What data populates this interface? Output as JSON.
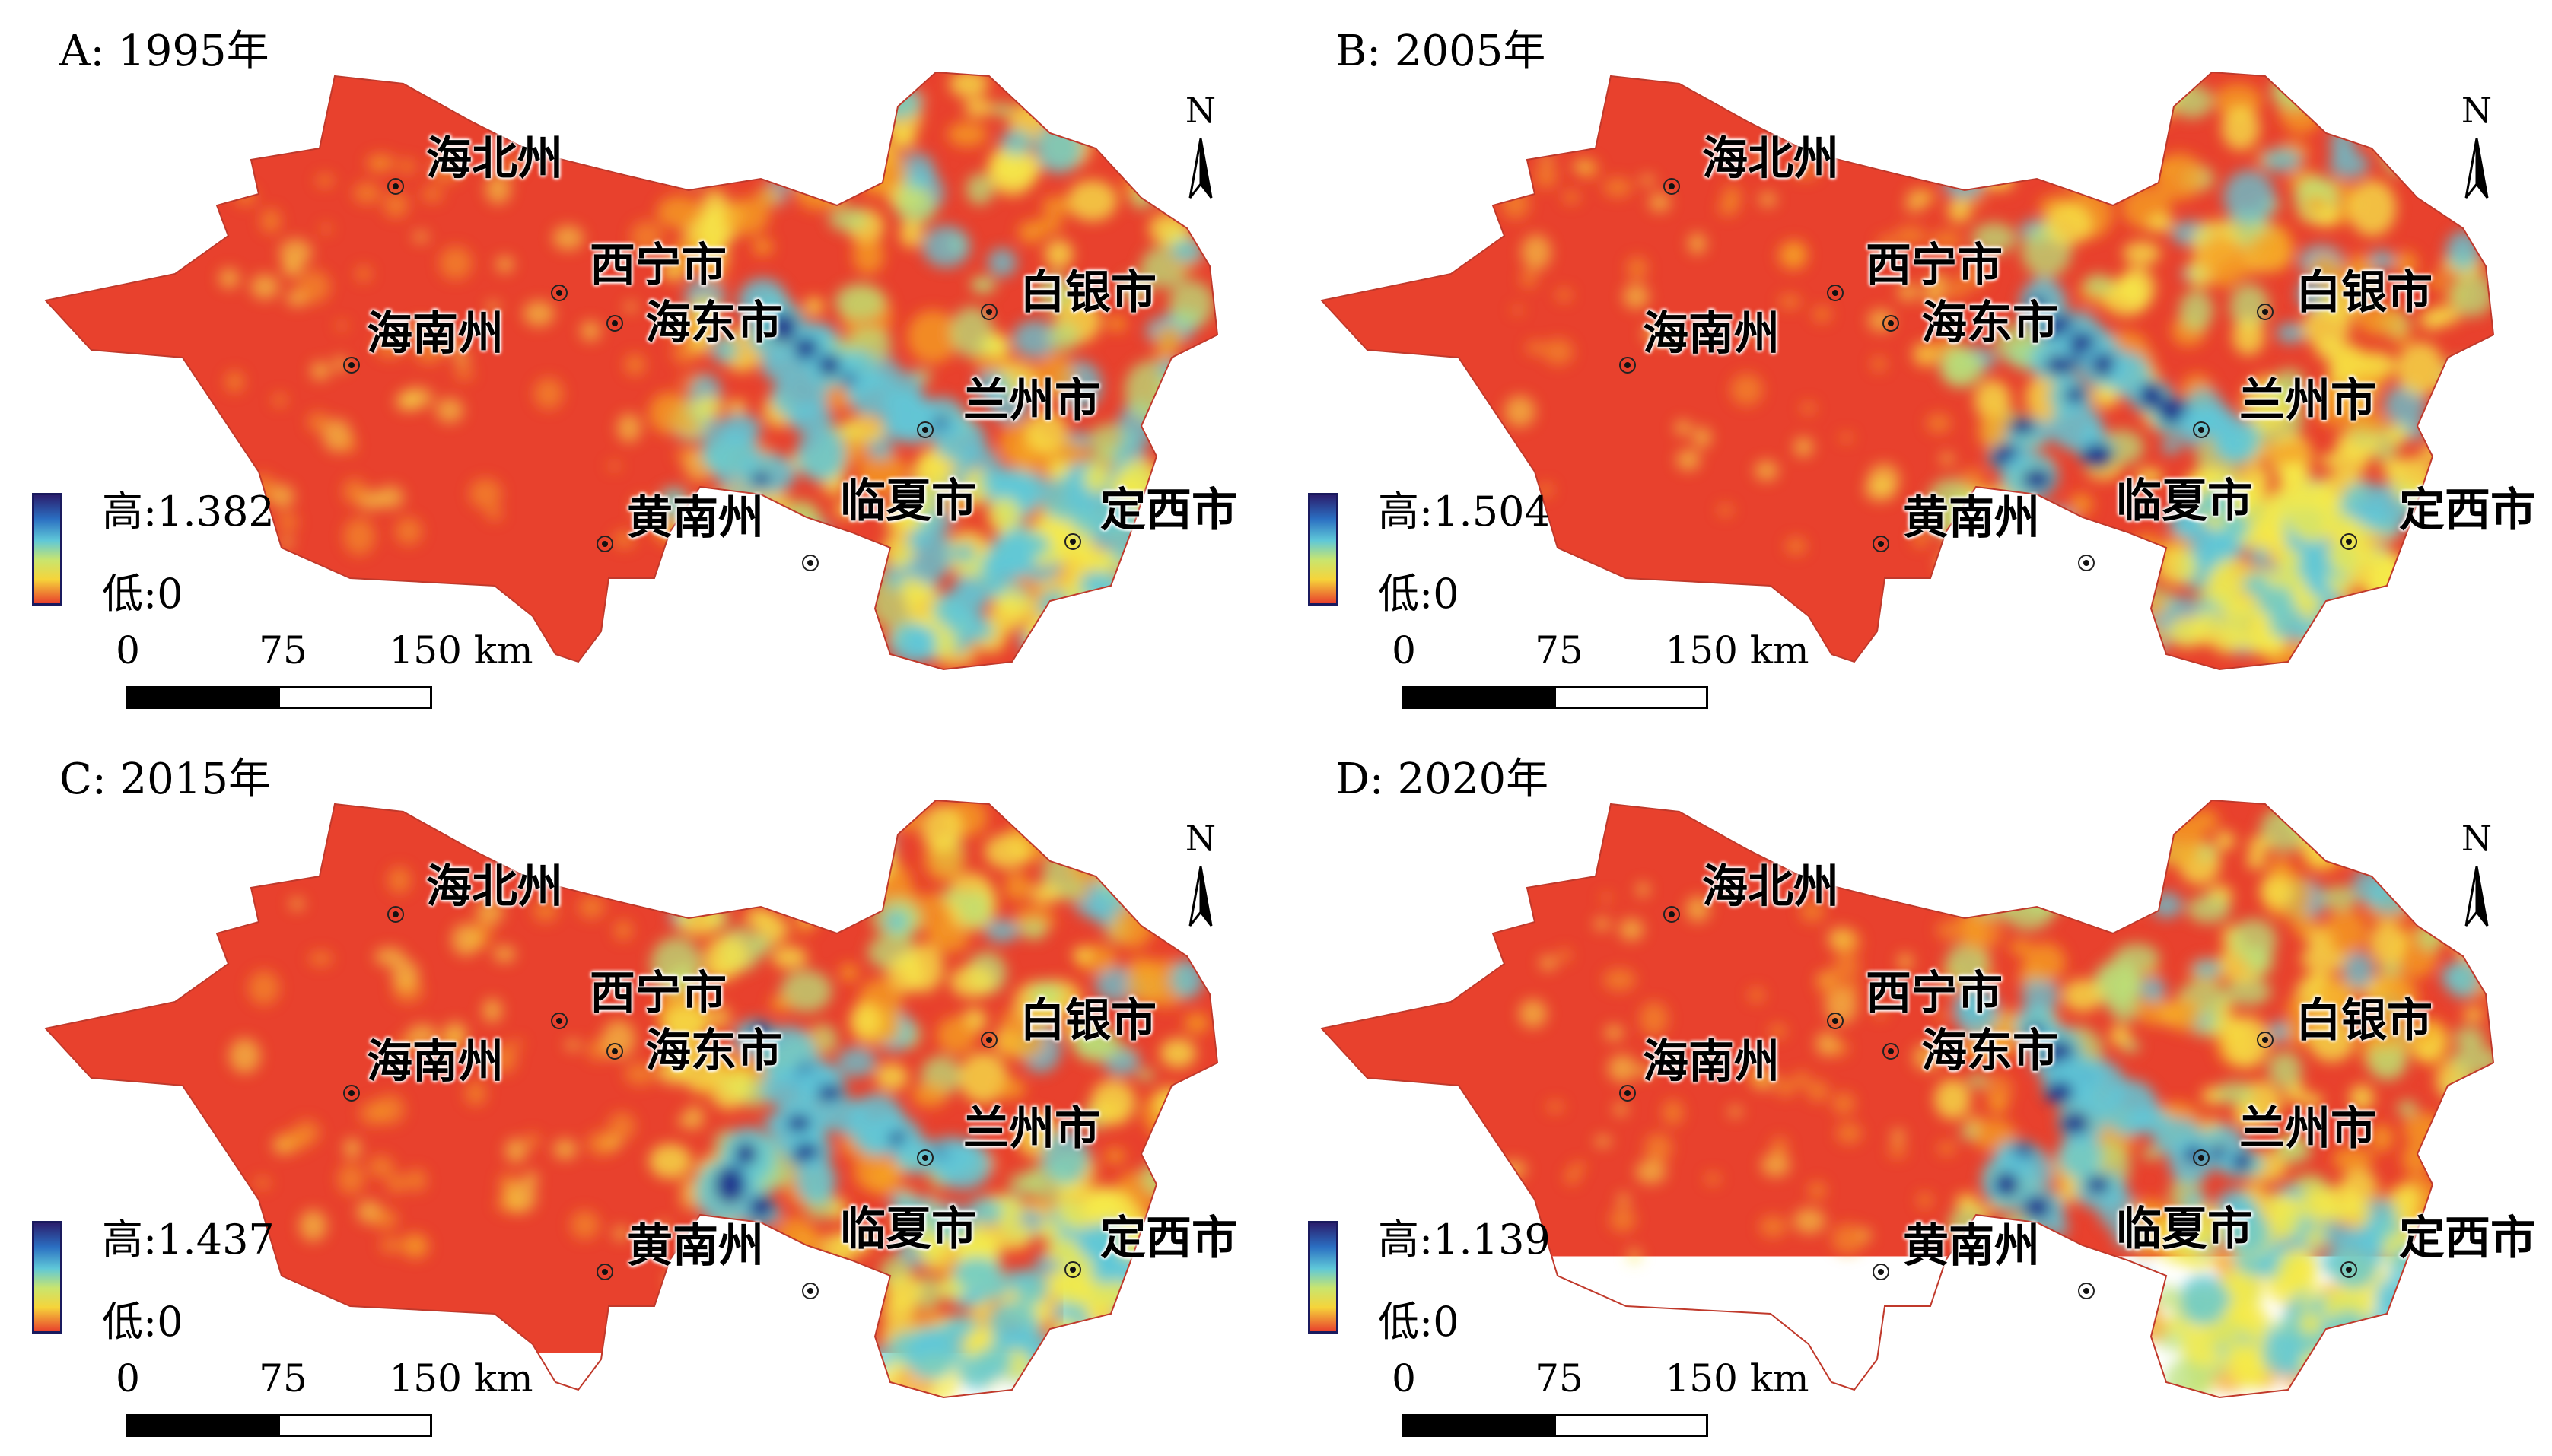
{
  "colors": {
    "low": "#e8412d",
    "mid_orange": "#f6a324",
    "mid_yellow": "#f5ea4a",
    "mid_green": "#b8e07a",
    "mid_cyan": "#5fc8d8",
    "high": "#1c2a8a"
  },
  "icons": {
    "north_arrow": "north-arrow-icon",
    "city_point": "city-point-icon"
  },
  "common": {
    "north_label": "N",
    "scale_ticks": [
      "0",
      "75",
      "150 km"
    ],
    "legend_low": "低:0",
    "city_labels": {
      "haibei": "海北州",
      "xining": "西宁市",
      "haidong": "海东市",
      "hainan": "海南州",
      "baiyin": "白银市",
      "lanzhou": "兰州市",
      "huangnan": "黄南州",
      "linxia": "临夏市",
      "dingxi": "定西市"
    }
  },
  "panels": [
    {
      "id": "A",
      "title": "A: 1995年",
      "legend_high": "高:1.382",
      "hot_level": 0.55
    },
    {
      "id": "B",
      "title": "B: 2005年",
      "legend_high": "高:1.504",
      "hot_level": 0.65
    },
    {
      "id": "C",
      "title": "C: 2015年",
      "legend_high": "高:1.437",
      "hot_level": 0.75
    },
    {
      "id": "D",
      "title": "D: 2020年",
      "legend_high": "高:1.139",
      "hot_level": 0.6
    }
  ]
}
